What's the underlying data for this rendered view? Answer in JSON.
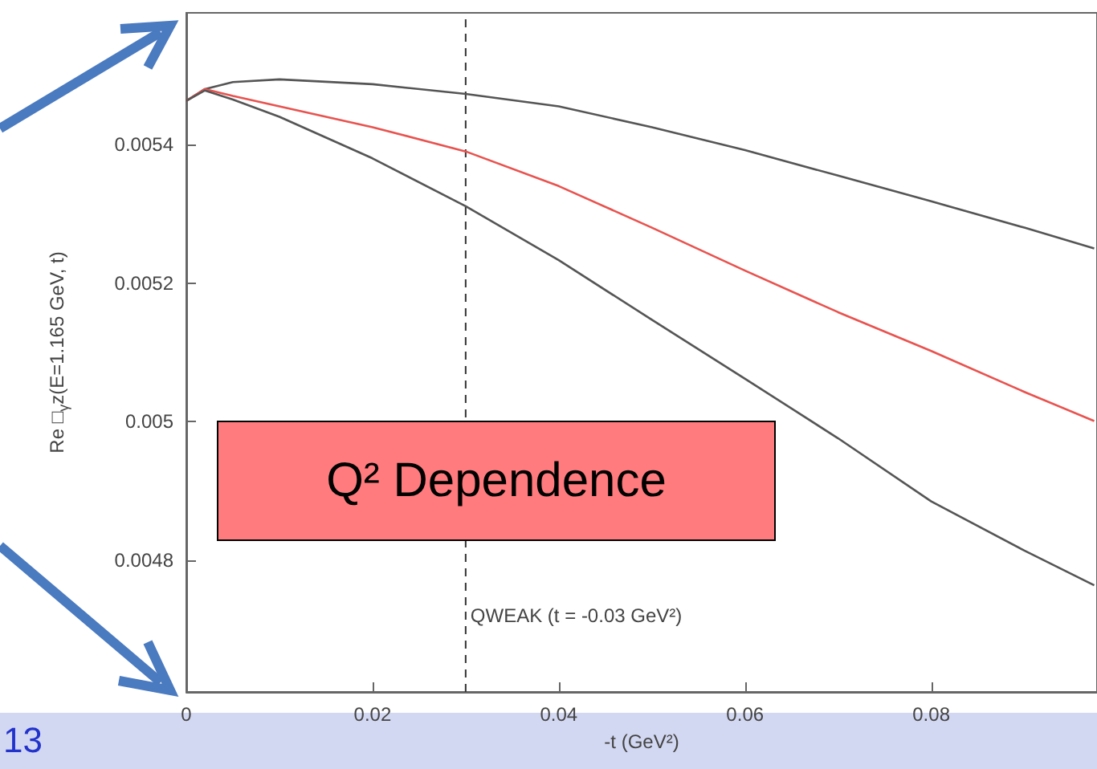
{
  "chart_data": {
    "type": "line",
    "xlabel": "-t (GeV²)",
    "ylabel": "Re □$_{γ}$z(E=1.165 GeV, t)",
    "xlim": [
      0,
      0.0978
    ],
    "ylim": [
      0.00461,
      0.00559
    ],
    "xticks": [
      0,
      0.02,
      0.04,
      0.06,
      0.08
    ],
    "yticks": [
      0.0048,
      0.005,
      0.0052,
      0.0054
    ],
    "x": [
      0,
      0.002,
      0.005,
      0.01,
      0.02,
      0.03,
      0.04,
      0.05,
      0.06,
      0.07,
      0.08,
      0.09,
      0.0975
    ],
    "series": [
      {
        "color": "#555555",
        "values": [
          0.005463,
          0.00548,
          0.00549,
          0.005494,
          0.005487,
          0.005473,
          0.005455,
          0.005425,
          0.005392,
          0.005355,
          0.005318,
          0.00528,
          0.00525
        ]
      },
      {
        "color": "#e8534f",
        "values": [
          0.005463,
          0.00548,
          0.00547,
          0.005455,
          0.005425,
          0.00539,
          0.00534,
          0.00528,
          0.005218,
          0.005158,
          0.005102,
          0.005043,
          0.005001
        ]
      },
      {
        "color": "#555555",
        "values": [
          0.005463,
          0.005478,
          0.005465,
          0.00544,
          0.00538,
          0.005311,
          0.005233,
          0.005147,
          0.005062,
          0.004976,
          0.004885,
          0.004814,
          0.004764
        ]
      }
    ],
    "ref_lines": [
      {
        "axis": "x",
        "value": 0.03,
        "line_style": "dashed",
        "color": "#333333"
      }
    ],
    "annotations": [
      "Q² Dependence",
      "13",
      {
        "text": "QWEAK (t = -0.03 GeV²)",
        "x": 0.03,
        "y": 0.00472
      }
    ],
    "marker": "none",
    "line_style": "solid"
  }
}
